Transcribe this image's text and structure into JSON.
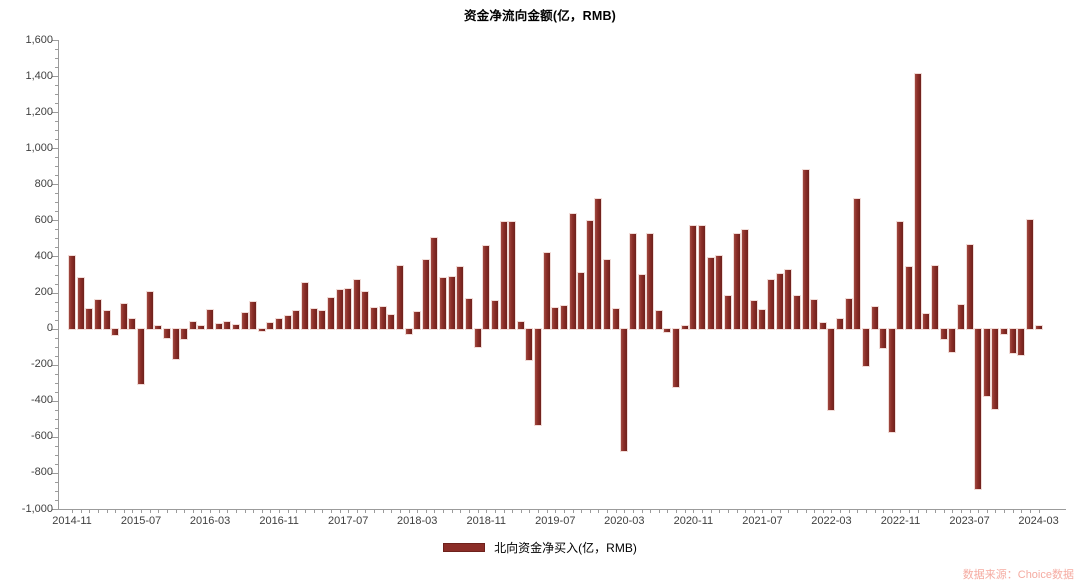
{
  "title": "资金净流向金额(亿，RMB)",
  "legend": {
    "label": "北向资金净买入(亿，RMB)",
    "swatch_color": "#8b2d27"
  },
  "source": "数据来源：Choice数据",
  "colors": {
    "bar": "#8b2d27",
    "bar_highlight": "#a04a41",
    "bar_shadow": "#6e211c",
    "axis": "#9b9b9b",
    "tick_label": "#3f3f3f",
    "title_text": "#000000",
    "source_text": "#f5aba1",
    "background": "#ffffff"
  },
  "chart_data": {
    "type": "bar",
    "title": "资金净流向金额(亿，RMB)",
    "series_name": "北向资金净买入(亿，RMB)",
    "x": [
      "2014-11",
      "2014-12",
      "2015-01",
      "2015-02",
      "2015-03",
      "2015-04",
      "2015-05",
      "2015-06",
      "2015-07",
      "2015-08",
      "2015-09",
      "2015-10",
      "2015-11",
      "2015-12",
      "2016-01",
      "2016-02",
      "2016-03",
      "2016-04",
      "2016-05",
      "2016-06",
      "2016-07",
      "2016-08",
      "2016-09",
      "2016-10",
      "2016-11",
      "2016-12",
      "2017-01",
      "2017-02",
      "2017-03",
      "2017-04",
      "2017-05",
      "2017-06",
      "2017-07",
      "2017-08",
      "2017-09",
      "2017-10",
      "2017-11",
      "2017-12",
      "2018-01",
      "2018-02",
      "2018-03",
      "2018-04",
      "2018-05",
      "2018-06",
      "2018-07",
      "2018-08",
      "2018-09",
      "2018-10",
      "2018-11",
      "2018-12",
      "2019-01",
      "2019-02",
      "2019-03",
      "2019-04",
      "2019-05",
      "2019-06",
      "2019-07",
      "2019-08",
      "2019-09",
      "2019-10",
      "2019-11",
      "2019-12",
      "2020-01",
      "2020-02",
      "2020-03",
      "2020-04",
      "2020-05",
      "2020-06",
      "2020-07",
      "2020-08",
      "2020-09",
      "2020-10",
      "2020-11",
      "2020-12",
      "2021-01",
      "2021-02",
      "2021-03",
      "2021-04",
      "2021-05",
      "2021-06",
      "2021-07",
      "2021-08",
      "2021-09",
      "2021-10",
      "2021-11",
      "2021-12",
      "2022-01",
      "2022-02",
      "2022-03",
      "2022-04",
      "2022-05",
      "2022-06",
      "2022-07",
      "2022-08",
      "2022-09",
      "2022-10",
      "2022-11",
      "2022-12",
      "2023-01",
      "2023-02",
      "2023-03",
      "2023-04",
      "2023-05",
      "2023-06",
      "2023-07",
      "2023-08",
      "2023-09",
      "2023-10",
      "2023-11",
      "2023-12",
      "2024-01",
      "2024-02",
      "2024-03"
    ],
    "values": [
      400,
      283,
      110,
      157,
      98,
      -37,
      139,
      52,
      -305,
      205,
      15,
      -50,
      -166,
      -55,
      35,
      15,
      105,
      25,
      38,
      22,
      85,
      145,
      -13,
      30,
      55,
      68,
      98,
      255,
      110,
      100,
      170,
      212,
      222,
      268,
      205,
      113,
      118,
      78,
      345,
      -28,
      90,
      380,
      503,
      280,
      284,
      344,
      166,
      -102,
      460,
      153,
      593,
      593,
      37,
      -175,
      -532,
      419,
      116,
      126,
      637,
      310,
      595,
      717,
      379,
      111,
      -680,
      527,
      296,
      523,
      98,
      -18,
      -325,
      17,
      569,
      567,
      390,
      404,
      183,
      525,
      547,
      151,
      105,
      270,
      305,
      323,
      183,
      879,
      161,
      33,
      -450,
      55,
      162,
      720,
      -205,
      122,
      -105,
      -573,
      591,
      340,
      1410,
      83,
      347,
      -55,
      -130,
      133,
      462,
      -890,
      -375,
      -445,
      -30,
      -135,
      -148,
      600,
      15
    ],
    "ylim": [
      -1000,
      1600
    ],
    "y_tick_step": 200,
    "y_minor_step": 50,
    "x_label_every": 8,
    "x_tick_labels": [
      "2014-11",
      "2015-07",
      "2016-03",
      "2016-11",
      "2017-07",
      "2018-03",
      "2018-11",
      "2019-07",
      "2020-03",
      "2020-11",
      "2021-07",
      "2022-03",
      "2022-11",
      "2023-07",
      "2024-03"
    ],
    "grid": false,
    "legend_position": "bottom"
  }
}
